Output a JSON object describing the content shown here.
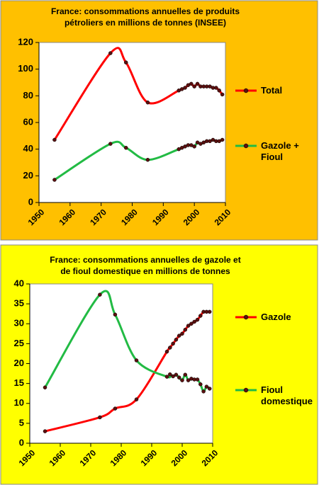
{
  "chart_data": [
    {
      "type": "line",
      "title": [
        "France: consommations annuelles de produits",
        "pétroliers en millions de tonnes (INSEE)"
      ],
      "x": [
        1955,
        1973,
        1978,
        1985,
        1995,
        1996,
        1997,
        1998,
        1999,
        2000,
        2001,
        2002,
        2003,
        2004,
        2005,
        2006,
        2007,
        2008,
        2009
      ],
      "series": [
        {
          "name": "Total",
          "color": "#ff0000",
          "values": [
            47,
            112,
            105,
            75,
            84,
            85,
            86,
            88,
            89,
            87,
            89,
            87,
            87,
            87,
            87,
            86,
            86,
            84,
            81
          ]
        },
        {
          "name": "Gazole + Fioul",
          "color": "#22bb44",
          "values": [
            17,
            44,
            41,
            32,
            40,
            41,
            42,
            43,
            43,
            42,
            45,
            44,
            45,
            46,
            46,
            47,
            46,
            46,
            47
          ]
        }
      ],
      "xlim": [
        1950,
        2010
      ],
      "xticks": [
        1950,
        1960,
        1970,
        1980,
        1990,
        2000,
        2010
      ],
      "ylim": [
        0,
        120
      ],
      "yticks": [
        0,
        20,
        40,
        60,
        80,
        100,
        120
      ],
      "grid": false,
      "legend": "right",
      "smooth": true,
      "background_color": "#ffc000",
      "plot_color": "#ffffff",
      "marker_color": "#5a1010"
    },
    {
      "type": "line",
      "title": [
        "France: consommations annuelles de gazole et",
        "de  fioul domestique en millions de tonnes"
      ],
      "x": [
        1955,
        1973,
        1978,
        1985,
        1995,
        1996,
        1997,
        1998,
        1999,
        2000,
        2001,
        2002,
        2003,
        2004,
        2005,
        2006,
        2007,
        2008,
        2009
      ],
      "series": [
        {
          "name": "Gazole",
          "color": "#ff0000",
          "values": [
            3,
            6.5,
            8.7,
            11,
            23,
            24,
            25,
            26,
            27,
            27.5,
            28.5,
            29.5,
            30,
            30.5,
            31,
            32,
            33,
            33,
            33
          ]
        },
        {
          "name": "Fioul domestique",
          "color": "#22bb44",
          "values": [
            14,
            37.3,
            32.3,
            20.8,
            16.7,
            17.3,
            16.8,
            17.2,
            16.5,
            15.8,
            17.2,
            15.8,
            16.2,
            16,
            16,
            14.8,
            13,
            14.2,
            13.7
          ]
        }
      ],
      "xlim": [
        1950,
        2010
      ],
      "xticks": [
        1950,
        1960,
        1970,
        1980,
        1990,
        2000,
        2010
      ],
      "ylim": [
        0,
        40
      ],
      "yticks": [
        0,
        5,
        10,
        15,
        20,
        25,
        30,
        35,
        40
      ],
      "grid": false,
      "legend": "right",
      "smooth": true,
      "background_color": "#ffff00",
      "plot_color": "#ffffff",
      "marker_color": "#5a1010"
    }
  ]
}
